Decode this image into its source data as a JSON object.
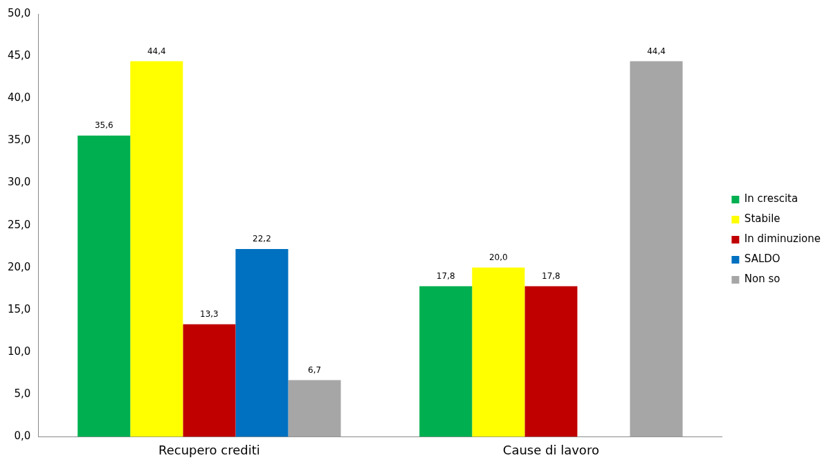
{
  "chart_data": {
    "type": "bar",
    "categories": [
      "Recupero crediti",
      "Cause di lavoro"
    ],
    "series": [
      {
        "name": "In crescita",
        "color": "#00b050",
        "values": [
          35.6,
          17.8
        ],
        "value_labels": [
          "35,6",
          "17,8"
        ]
      },
      {
        "name": "Stabile",
        "color": "#ffff00",
        "values": [
          44.4,
          20.0
        ],
        "value_labels": [
          "44,4",
          "20,0"
        ]
      },
      {
        "name": "In diminuzione",
        "color": "#c00000",
        "values": [
          13.3,
          17.8
        ],
        "value_labels": [
          "13,3",
          "17,8"
        ]
      },
      {
        "name": "SALDO",
        "color": "#0070c0",
        "values": [
          22.2,
          null
        ],
        "value_labels": [
          "22,2",
          null
        ]
      },
      {
        "name": "Non so",
        "color": "#a6a6a6",
        "values": [
          6.7,
          44.4
        ],
        "value_labels": [
          "6,7",
          "44,4"
        ]
      }
    ],
    "ylim": [
      0,
      50
    ],
    "yticks": [
      {
        "value": 0,
        "label": "0,0"
      },
      {
        "value": 5,
        "label": "5,0"
      },
      {
        "value": 10,
        "label": "10,0"
      },
      {
        "value": 15,
        "label": "15,0"
      },
      {
        "value": 20,
        "label": "20,0"
      },
      {
        "value": 25,
        "label": "25,0"
      },
      {
        "value": 30,
        "label": "30,0"
      },
      {
        "value": 35,
        "label": "35,0"
      },
      {
        "value": 40,
        "label": "40,0"
      },
      {
        "value": 45,
        "label": "45,0"
      },
      {
        "value": 50,
        "label": "50,0"
      }
    ],
    "grid": false,
    "legend": "right"
  }
}
